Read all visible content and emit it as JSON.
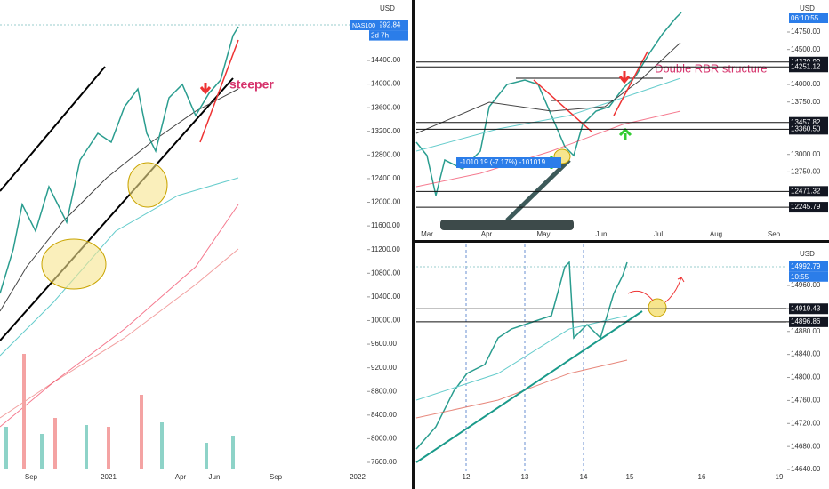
{
  "panels": [
    {
      "currency": "USD",
      "yticks": [
        {
          "value": 14400,
          "label": "14400.00"
        },
        {
          "value": 14000,
          "label": "14000.00"
        },
        {
          "value": 13600,
          "label": "13600.00"
        },
        {
          "value": 13200,
          "label": "13200.00"
        },
        {
          "value": 12800,
          "label": "12800.00"
        },
        {
          "value": 12400,
          "label": "12400.00"
        },
        {
          "value": 12000,
          "label": "12000.00"
        },
        {
          "value": 11600,
          "label": "11600.00"
        },
        {
          "value": 11200,
          "label": "11200.00"
        },
        {
          "value": 10800,
          "label": "10800.00"
        },
        {
          "value": 10400,
          "label": "10400.00"
        },
        {
          "value": 10000,
          "label": "10000.00"
        },
        {
          "value": 9600,
          "label": "9600.00"
        },
        {
          "value": 9200,
          "label": "9200.00"
        },
        {
          "value": 8800,
          "label": "8800.00"
        },
        {
          "value": 8400,
          "label": "8400.00"
        },
        {
          "value": 8000,
          "label": "8000.00"
        },
        {
          "value": 7600,
          "label": "7600.00"
        }
      ],
      "xlabels": [
        "Sep",
        "2021",
        "Apr",
        "Jun",
        "Sep",
        "2022"
      ],
      "symbol": "NAS100",
      "price_tag": {
        "value": 14992.84,
        "label": "14992.84"
      },
      "countdown": "2d 7h",
      "annotation": "steeper"
    },
    {
      "currency": "USD",
      "countdown": "06:10:55",
      "yticks": [
        {
          "value": 14750,
          "label": "14750.00"
        },
        {
          "value": 14500,
          "label": "14500.00"
        },
        {
          "value": 14000,
          "label": "14000.00"
        },
        {
          "value": 13750,
          "label": "13750.00"
        },
        {
          "value": 13000,
          "label": "13000.00"
        },
        {
          "value": 12750,
          "label": "12750.00"
        }
      ],
      "levels": [
        {
          "value": 14320.99,
          "label": "14320.99"
        },
        {
          "value": 14251.12,
          "label": "14251.12"
        },
        {
          "value": 13457.82,
          "label": "13457.82"
        },
        {
          "value": 13360.5,
          "label": "13360.50"
        },
        {
          "value": 12471.32,
          "label": "12471.32"
        },
        {
          "value": 12245.79,
          "label": "12245.79"
        }
      ],
      "xlabels": [
        "Mar",
        "Apr",
        "May",
        "Jun",
        "Jul",
        "Aug",
        "Sep"
      ],
      "annotation": "Double RBR structure",
      "measure": "-1010.19 (-7.17%) -101019"
    },
    {
      "currency": "USD",
      "price_tag": {
        "value": 14992.79,
        "label": "14992.79"
      },
      "countdown": "10:55",
      "yticks": [
        {
          "value": 14960,
          "label": "14960.00"
        },
        {
          "value": 14880,
          "label": "14880.00"
        },
        {
          "value": 14840,
          "label": "14840.00"
        },
        {
          "value": 14800,
          "label": "14800.00"
        },
        {
          "value": 14760,
          "label": "14760.00"
        },
        {
          "value": 14720,
          "label": "14720.00"
        },
        {
          "value": 14680,
          "label": "14680.00"
        },
        {
          "value": 14640,
          "label": "14640.00"
        }
      ],
      "levels": [
        {
          "value": 14919.43,
          "label": "14919.43"
        },
        {
          "value": 14896.86,
          "label": "14896.86"
        }
      ],
      "xlabels": [
        "12",
        "13",
        "14",
        "15",
        "16",
        "19"
      ]
    }
  ]
}
